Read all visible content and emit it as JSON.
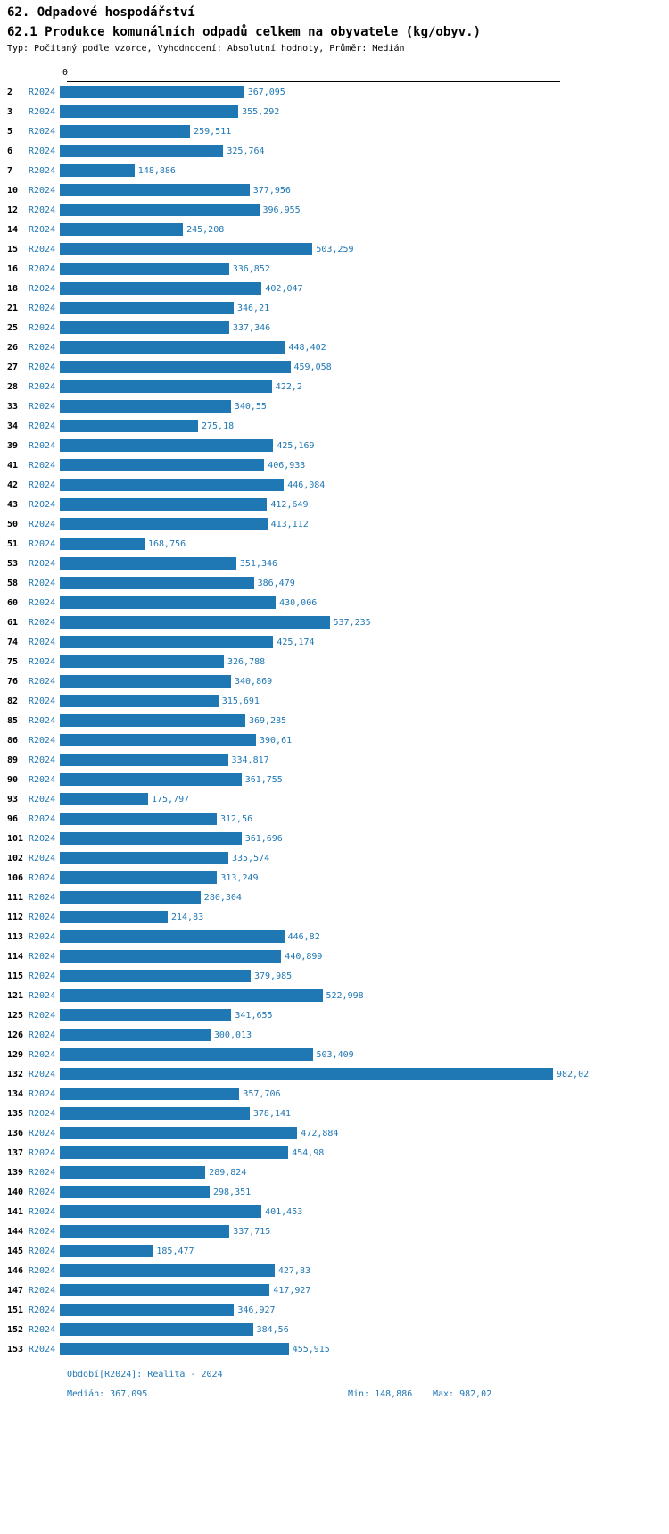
{
  "header": {
    "title": "62. Odpadové hospodářství",
    "subtitle": "62.1 Produkce komunálních odpadů celkem na obyvatele (kg/obyv.)",
    "meta": "Typ: Počítaný podle vzorce, Vyhodnocení: Absolutní hodnoty, Průměr: Medián"
  },
  "chart_data": {
    "type": "bar",
    "orientation": "horizontal",
    "title": "62.1 Produkce komunálních odpadů celkem na obyvatele (kg/obyv.)",
    "series_label": "R2024",
    "axis_zero_label": "0",
    "xmax": 982.02,
    "xlim": [
      0,
      982.02
    ],
    "median": 367.095,
    "min": 148.886,
    "max": 982.02,
    "legend_position": "none",
    "grid": "median-line-only",
    "rows": [
      {
        "id": "2",
        "label": "367,095",
        "value": 367.095
      },
      {
        "id": "3",
        "label": "355,292",
        "value": 355.292
      },
      {
        "id": "5",
        "label": "259,511",
        "value": 259.511
      },
      {
        "id": "6",
        "label": "325,764",
        "value": 325.764
      },
      {
        "id": "7",
        "label": "148,886",
        "value": 148.886
      },
      {
        "id": "10",
        "label": "377,956",
        "value": 377.956
      },
      {
        "id": "12",
        "label": "396,955",
        "value": 396.955
      },
      {
        "id": "14",
        "label": "245,208",
        "value": 245.208
      },
      {
        "id": "15",
        "label": "503,259",
        "value": 503.259
      },
      {
        "id": "16",
        "label": "336,852",
        "value": 336.852
      },
      {
        "id": "18",
        "label": "402,047",
        "value": 402.047
      },
      {
        "id": "21",
        "label": "346,21",
        "value": 346.21
      },
      {
        "id": "25",
        "label": "337,346",
        "value": 337.346
      },
      {
        "id": "26",
        "label": "448,402",
        "value": 448.402
      },
      {
        "id": "27",
        "label": "459,058",
        "value": 459.058
      },
      {
        "id": "28",
        "label": "422,2",
        "value": 422.2
      },
      {
        "id": "33",
        "label": "340,55",
        "value": 340.55
      },
      {
        "id": "34",
        "label": "275,18",
        "value": 275.18
      },
      {
        "id": "39",
        "label": "425,169",
        "value": 425.169
      },
      {
        "id": "41",
        "label": "406,933",
        "value": 406.933
      },
      {
        "id": "42",
        "label": "446,084",
        "value": 446.084
      },
      {
        "id": "43",
        "label": "412,649",
        "value": 412.649
      },
      {
        "id": "50",
        "label": "413,112",
        "value": 413.112
      },
      {
        "id": "51",
        "label": "168,756",
        "value": 168.756
      },
      {
        "id": "53",
        "label": "351,346",
        "value": 351.346
      },
      {
        "id": "58",
        "label": "386,479",
        "value": 386.479
      },
      {
        "id": "60",
        "label": "430,006",
        "value": 430.006
      },
      {
        "id": "61",
        "label": "537,235",
        "value": 537.235
      },
      {
        "id": "74",
        "label": "425,174",
        "value": 425.174
      },
      {
        "id": "75",
        "label": "326,788",
        "value": 326.788
      },
      {
        "id": "76",
        "label": "340,869",
        "value": 340.869
      },
      {
        "id": "82",
        "label": "315,691",
        "value": 315.691
      },
      {
        "id": "85",
        "label": "369,285",
        "value": 369.285
      },
      {
        "id": "86",
        "label": "390,61",
        "value": 390.61
      },
      {
        "id": "89",
        "label": "334,817",
        "value": 334.817
      },
      {
        "id": "90",
        "label": "361,755",
        "value": 361.755
      },
      {
        "id": "93",
        "label": "175,797",
        "value": 175.797
      },
      {
        "id": "96",
        "label": "312,56",
        "value": 312.56
      },
      {
        "id": "101",
        "label": "361,696",
        "value": 361.696
      },
      {
        "id": "102",
        "label": "335,574",
        "value": 335.574
      },
      {
        "id": "106",
        "label": "313,249",
        "value": 313.249
      },
      {
        "id": "111",
        "label": "280,304",
        "value": 280.304
      },
      {
        "id": "112",
        "label": "214,83",
        "value": 214.83
      },
      {
        "id": "113",
        "label": "446,82",
        "value": 446.82
      },
      {
        "id": "114",
        "label": "440,899",
        "value": 440.899
      },
      {
        "id": "115",
        "label": "379,985",
        "value": 379.985
      },
      {
        "id": "121",
        "label": "522,998",
        "value": 522.998
      },
      {
        "id": "125",
        "label": "341,655",
        "value": 341.655
      },
      {
        "id": "126",
        "label": "300,013",
        "value": 300.013
      },
      {
        "id": "129",
        "label": "503,409",
        "value": 503.409
      },
      {
        "id": "132",
        "label": "982,02",
        "value": 982.02
      },
      {
        "id": "134",
        "label": "357,706",
        "value": 357.706
      },
      {
        "id": "135",
        "label": "378,141",
        "value": 378.141
      },
      {
        "id": "136",
        "label": "472,884",
        "value": 472.884
      },
      {
        "id": "137",
        "label": "454,98",
        "value": 454.98
      },
      {
        "id": "139",
        "label": "289,824",
        "value": 289.824
      },
      {
        "id": "140",
        "label": "298,351",
        "value": 298.351
      },
      {
        "id": "141",
        "label": "401,453",
        "value": 401.453
      },
      {
        "id": "144",
        "label": "337,715",
        "value": 337.715
      },
      {
        "id": "145",
        "label": "185,477",
        "value": 185.477
      },
      {
        "id": "146",
        "label": "427,83",
        "value": 427.83
      },
      {
        "id": "147",
        "label": "417,927",
        "value": 417.927
      },
      {
        "id": "151",
        "label": "346,927",
        "value": 346.927
      },
      {
        "id": "152",
        "label": "384,56",
        "value": 384.56
      },
      {
        "id": "153",
        "label": "455,915",
        "value": 455.915
      }
    ]
  },
  "footer": {
    "period": "Období[R2024]: Realita - 2024",
    "median": "Medián: 367,095",
    "min": "Min: 148,886",
    "max": "Max: 982,02"
  },
  "colors": {
    "bar": "#1f77b4",
    "text_accent": "#1f77b4",
    "axis": "#000000",
    "median_line": "#a3b8c8"
  }
}
